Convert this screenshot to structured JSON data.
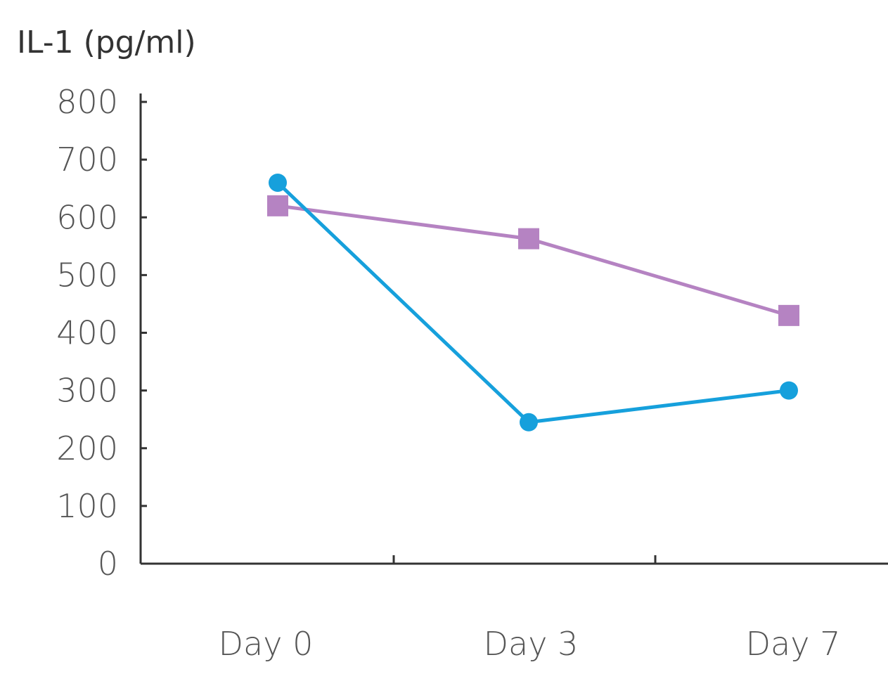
{
  "chart_data": {
    "type": "line",
    "ylabel": "IL-1 (pg/ml)",
    "xlabel": "",
    "categories": [
      "Day 0",
      "Day 3",
      "Day 7"
    ],
    "ylim": [
      0,
      800
    ],
    "yticks": [
      0,
      100,
      200,
      300,
      400,
      500,
      600,
      700,
      800
    ],
    "grid": false,
    "legend": "none",
    "series": [
      {
        "marker": "square",
        "color": "#B583C2",
        "values": [
          620,
          563,
          430
        ]
      },
      {
        "marker": "circle",
        "color": "#16A0DC",
        "values": [
          660,
          245,
          300
        ]
      }
    ]
  }
}
